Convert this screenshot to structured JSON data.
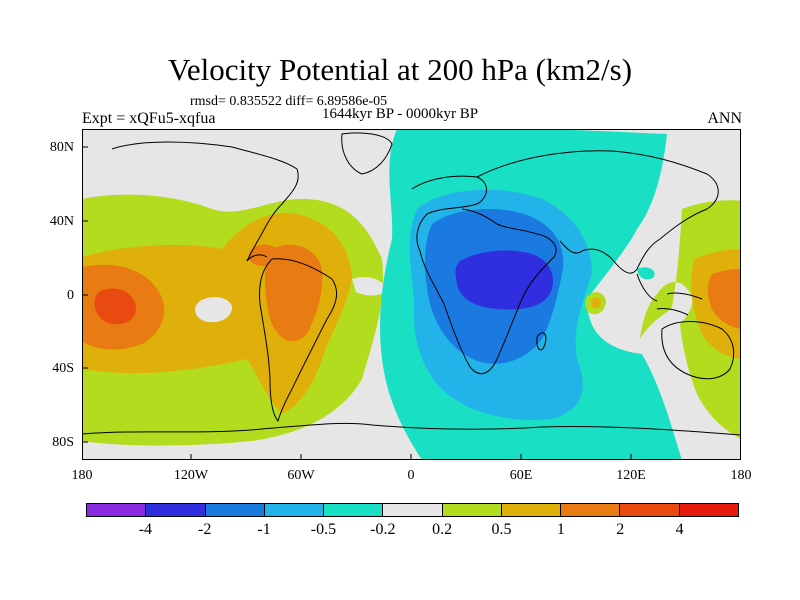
{
  "title": "Velocity Potential at 200 hPa (km2/s)",
  "stats": "rmsd= 0.835522 diff= 6.89586e-05",
  "period": "1644kyr BP - 0000kyr BP",
  "experiment": "Expt = xQFu5-xqfua",
  "season": "ANN",
  "map": {
    "lat_ticks": [
      "80N",
      "40N",
      "0",
      "40S",
      "80S"
    ],
    "lon_ticks": [
      "180",
      "120W",
      "60W",
      "0",
      "60E",
      "120E",
      "180"
    ],
    "background_color": "#e6e6e6",
    "land_outline_color": "#000000"
  },
  "colorbar": {
    "colors": [
      "#8a2be2",
      "#2f2fdf",
      "#1a7ae0",
      "#22b4e8",
      "#19e0c4",
      "#e6e6e6",
      "#b4dc1e",
      "#e0b00a",
      "#e87c12",
      "#e84a10",
      "#e61a0a"
    ],
    "labels": [
      "-4",
      "-2",
      "-1",
      "-0.5",
      "-0.2",
      "0.2",
      "0.5",
      "1",
      "2",
      "4"
    ]
  }
}
